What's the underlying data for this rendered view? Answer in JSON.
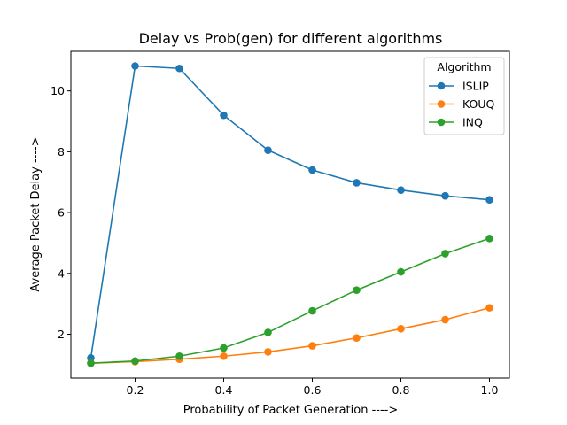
{
  "chart_data": {
    "type": "line",
    "title": "Delay vs Prob(gen) for different algorithms",
    "xlabel": "Probability of Packet Generation ---->",
    "ylabel": "Average Packet Delay ---->",
    "xlim": [
      0.055,
      1.045
    ],
    "ylim": [
      0.56,
      11.3
    ],
    "xticks": [
      0.2,
      0.4,
      0.6,
      0.8,
      1.0
    ],
    "xtick_labels": [
      "0.2",
      "0.4",
      "0.6",
      "0.8",
      "1.0"
    ],
    "yticks": [
      2,
      4,
      6,
      8,
      10
    ],
    "ytick_labels": [
      "2",
      "4",
      "6",
      "8",
      "10"
    ],
    "grid": false,
    "legend": {
      "title": "Algorithm",
      "placement": "top-right"
    },
    "x": [
      0.1,
      0.2,
      0.3,
      0.4,
      0.5,
      0.6,
      0.7,
      0.8,
      0.9,
      1.0
    ],
    "series": [
      {
        "name": "ISLIP",
        "color": "#1f77b4",
        "values": [
          1.22,
          10.82,
          10.74,
          9.2,
          8.05,
          7.4,
          6.98,
          6.74,
          6.55,
          6.42
        ]
      },
      {
        "name": "KOUQ",
        "color": "#ff7f0e",
        "values": [
          1.05,
          1.1,
          1.18,
          1.28,
          1.42,
          1.62,
          1.88,
          2.18,
          2.48,
          2.87
        ]
      },
      {
        "name": "INQ",
        "color": "#2ca02c",
        "values": [
          1.05,
          1.12,
          1.28,
          1.55,
          2.06,
          2.77,
          3.45,
          4.05,
          4.65,
          5.15
        ]
      }
    ]
  }
}
